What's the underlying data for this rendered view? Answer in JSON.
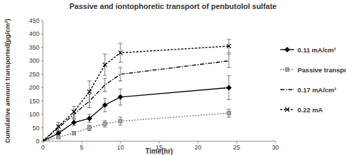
{
  "chart_data": {
    "type": "line",
    "title": "Passive and iontophoretic transport of penbutolol sulfate",
    "x_label": "Time(hr)",
    "y_label": "Cumulative amount transported(µg/cm²)",
    "x": [
      0,
      2,
      4,
      6,
      8,
      10,
      24
    ],
    "series": [
      {
        "name": "0.11 mA/cm²",
        "color": "#000000",
        "marker": "diamond",
        "line_style": "solid",
        "values": [
          0,
          30,
          70,
          85,
          135,
          165,
          200
        ],
        "errors": [
          0,
          6,
          12,
          15,
          25,
          30,
          45
        ]
      },
      {
        "name": "Passive transport",
        "color": "#777777",
        "marker": "square",
        "line_style": "dotted",
        "values": [
          0,
          15,
          30,
          50,
          65,
          75,
          105
        ],
        "errors": [
          0,
          3,
          6,
          10,
          12,
          15,
          15
        ]
      },
      {
        "name": "0.17 mA/cm²",
        "color": "#000000",
        "marker": "none",
        "line_style": "dashdot",
        "values": [
          0,
          50,
          100,
          150,
          210,
          250,
          300
        ],
        "errors": [
          0,
          10,
          15,
          25,
          25,
          25,
          25
        ]
      },
      {
        "name": "0.22 mA",
        "color": "#000000",
        "marker": "x",
        "line_style": "dashed",
        "values": [
          0,
          55,
          110,
          185,
          285,
          330,
          355
        ],
        "errors": [
          0,
          15,
          20,
          40,
          40,
          35,
          25
        ]
      }
    ],
    "xlim": [
      0,
      30
    ],
    "xticks": [
      0,
      5,
      10,
      15,
      20,
      25,
      30
    ],
    "ylim": [
      0,
      450
    ],
    "yticks": [
      0,
      50,
      100,
      150,
      200,
      250,
      300,
      350,
      400,
      450
    ],
    "grid": false,
    "legend": "right"
  }
}
